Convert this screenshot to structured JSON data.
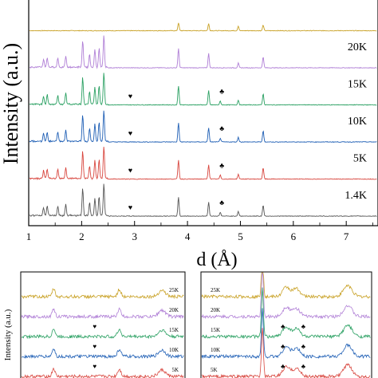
{
  "chart_data": [
    {
      "type": "line",
      "panel": "main",
      "xlabel": "d (Å)",
      "ylabel": "Intensity (a.u.)",
      "xlim": [
        1,
        7.6
      ],
      "x_ticks": [
        1,
        2,
        3,
        4,
        5,
        6,
        7
      ],
      "y_ticks_shown": false,
      "legend": "none",
      "grid": false,
      "series": [
        {
          "name": "",
          "color": "#c9a227",
          "offset_rank": 6,
          "peaks": [
            [
              3.83,
              0.25
            ],
            [
              4.4,
              0.22
            ],
            [
              4.96,
              0.15
            ],
            [
              5.43,
              0.18
            ]
          ]
        },
        {
          "name": "20K",
          "color": "#b07fd6",
          "offset_rank": 5,
          "peaks": [
            [
              1.28,
              0.25
            ],
            [
              1.35,
              0.3
            ],
            [
              1.55,
              0.3
            ],
            [
              1.7,
              0.35
            ],
            [
              2.02,
              0.85
            ],
            [
              2.15,
              0.4
            ],
            [
              2.25,
              0.55
            ],
            [
              2.33,
              0.6
            ],
            [
              2.42,
              1.0
            ],
            [
              3.83,
              0.6
            ],
            [
              4.4,
              0.45
            ],
            [
              4.96,
              0.15
            ],
            [
              5.43,
              0.35
            ]
          ]
        },
        {
          "name": "15K",
          "color": "#2aa062",
          "offset_rank": 4,
          "peaks": [
            [
              1.28,
              0.25
            ],
            [
              1.35,
              0.3
            ],
            [
              1.55,
              0.3
            ],
            [
              1.7,
              0.35
            ],
            [
              2.02,
              0.85
            ],
            [
              2.15,
              0.4
            ],
            [
              2.25,
              0.55
            ],
            [
              2.33,
              0.6
            ],
            [
              2.42,
              1.0
            ],
            [
              3.83,
              0.6
            ],
            [
              4.4,
              0.45
            ],
            [
              4.62,
              0.12
            ],
            [
              4.96,
              0.15
            ],
            [
              5.43,
              0.35
            ]
          ]
        },
        {
          "name": "10K",
          "color": "#1f5fb5",
          "offset_rank": 3,
          "peaks": [
            [
              1.28,
              0.25
            ],
            [
              1.35,
              0.3
            ],
            [
              1.55,
              0.3
            ],
            [
              1.7,
              0.35
            ],
            [
              2.02,
              0.85
            ],
            [
              2.15,
              0.4
            ],
            [
              2.25,
              0.55
            ],
            [
              2.33,
              0.6
            ],
            [
              2.42,
              1.0
            ],
            [
              3.83,
              0.6
            ],
            [
              4.4,
              0.45
            ],
            [
              4.62,
              0.12
            ],
            [
              4.96,
              0.15
            ],
            [
              5.43,
              0.35
            ]
          ]
        },
        {
          "name": "5K",
          "color": "#d8463e",
          "offset_rank": 2,
          "peaks": [
            [
              1.28,
              0.25
            ],
            [
              1.35,
              0.3
            ],
            [
              1.55,
              0.3
            ],
            [
              1.7,
              0.35
            ],
            [
              2.02,
              0.85
            ],
            [
              2.15,
              0.4
            ],
            [
              2.25,
              0.55
            ],
            [
              2.33,
              0.6
            ],
            [
              2.42,
              1.0
            ],
            [
              3.83,
              0.6
            ],
            [
              4.4,
              0.45
            ],
            [
              4.62,
              0.12
            ],
            [
              4.96,
              0.15
            ],
            [
              5.43,
              0.35
            ]
          ]
        },
        {
          "name": "1.4K",
          "color": "#555555",
          "offset_rank": 1,
          "peaks": [
            [
              1.28,
              0.25
            ],
            [
              1.35,
              0.3
            ],
            [
              1.55,
              0.3
            ],
            [
              1.7,
              0.35
            ],
            [
              2.02,
              0.85
            ],
            [
              2.15,
              0.4
            ],
            [
              2.25,
              0.55
            ],
            [
              2.33,
              0.6
            ],
            [
              2.42,
              1.0
            ],
            [
              3.83,
              0.6
            ],
            [
              4.4,
              0.45
            ],
            [
              4.62,
              0.12
            ],
            [
              4.96,
              0.15
            ],
            [
              5.43,
              0.35
            ]
          ]
        }
      ],
      "annotations": [
        {
          "symbol": "♥",
          "x": 2.92,
          "series": "15K"
        },
        {
          "symbol": "♥",
          "x": 2.92,
          "series": "10K"
        },
        {
          "symbol": "♥",
          "x": 2.92,
          "series": "5K"
        },
        {
          "symbol": "♥",
          "x": 2.92,
          "series": "1.4K"
        },
        {
          "symbol": "♣",
          "x": 4.65,
          "series": "15K"
        },
        {
          "symbol": "♣",
          "x": 4.65,
          "series": "10K"
        },
        {
          "symbol": "♣",
          "x": 4.65,
          "series": "5K"
        },
        {
          "symbol": "♣",
          "x": 4.65,
          "series": "1.4K"
        }
      ]
    },
    {
      "type": "line",
      "panel": "inset-left",
      "ylabel": "Intensity (a.u.)",
      "series": [
        {
          "name": "25K",
          "color": "#c9a227"
        },
        {
          "name": "20K",
          "color": "#b07fd6"
        },
        {
          "name": "15K",
          "color": "#2aa062"
        },
        {
          "name": "10K",
          "color": "#1f5fb5"
        },
        {
          "name": "5K",
          "color": "#d8463e"
        }
      ],
      "annotations": [
        {
          "symbol": "♥",
          "series": "15K"
        },
        {
          "symbol": "♥",
          "series": "10K"
        },
        {
          "symbol": "♥",
          "series": "5K"
        }
      ]
    },
    {
      "type": "line",
      "panel": "inset-right",
      "series": [
        {
          "name": "25K",
          "color": "#c9a227"
        },
        {
          "name": "20K",
          "color": "#b07fd6"
        },
        {
          "name": "15K",
          "color": "#2aa062"
        },
        {
          "name": "10K",
          "color": "#1f5fb5"
        },
        {
          "name": "5K",
          "color": "#d8463e"
        }
      ],
      "annotations": [
        {
          "symbol": "♣",
          "series": "15K"
        },
        {
          "symbol": "♣",
          "series": "10K"
        },
        {
          "symbol": "♣",
          "series": "5K"
        }
      ]
    }
  ]
}
